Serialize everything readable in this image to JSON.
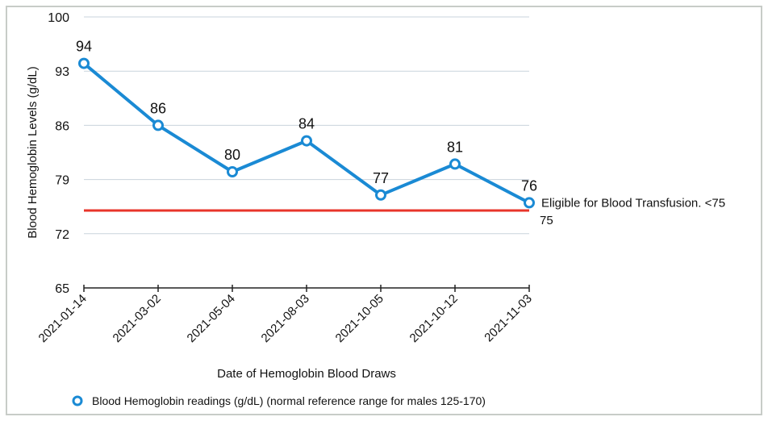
{
  "chart_data": {
    "type": "line",
    "categories": [
      "2021-01-14",
      "2021-03-02",
      "2021-05-04",
      "2021-08-03",
      "2021-10-05",
      "2021-10-12",
      "2021-11-03"
    ],
    "series": [
      {
        "name": "Blood Hemoglobin readings (g/dL) (normal reference range for males 125-170)",
        "values": [
          94,
          86,
          80,
          84,
          77,
          81,
          76
        ],
        "color": "#1a8ad4"
      }
    ],
    "threshold": {
      "value": 75,
      "label": "Eligible for Blood Transfusion. <75",
      "value_label": "75",
      "color": "#e8352a"
    },
    "xlabel": "Date of Hemoglobin Blood Draws",
    "ylabel": "Blood Hemoglobin Levels (g/dL)",
    "ylim": [
      65,
      100
    ],
    "yticks": [
      65,
      72,
      79,
      86,
      93,
      100
    ],
    "grid": true,
    "legend": "bottom-left"
  }
}
